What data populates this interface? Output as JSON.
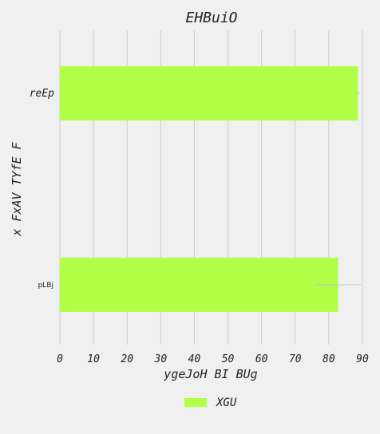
{
  "chart_data": {
    "type": "bar",
    "orientation": "horizontal",
    "title": "EHBuiO",
    "xlabel": "ygeJoH BI BUg",
    "ylabel": "x FxAV TYfE F",
    "categories": [
      "reEp",
      "pLBj"
    ],
    "series": [
      {
        "name": "XGU",
        "values": [
          88.7,
          82.8
        ],
        "errors": [
          0.8,
          6.8
        ],
        "color": "#b2ff47"
      }
    ],
    "xlim": [
      0,
      90
    ],
    "xticks": [
      0,
      10,
      20,
      30,
      40,
      50,
      60,
      70,
      80,
      90
    ],
    "grid": true,
    "legend": "bottom-center"
  }
}
